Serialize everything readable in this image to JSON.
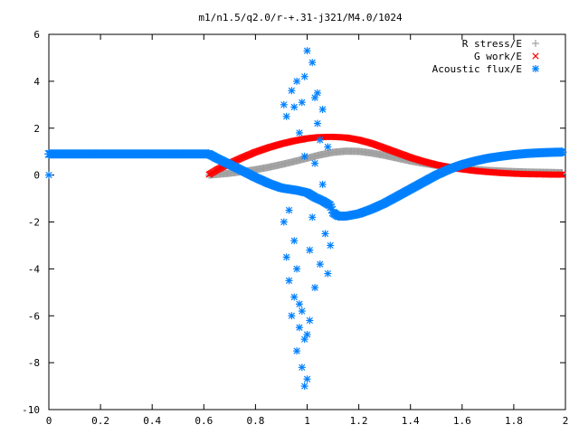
{
  "chart_data": {
    "type": "scatter",
    "title": "m1/n1.5/q2.0/r-+.31-j321/M4.0/1024",
    "xlabel": "",
    "ylabel": "",
    "xlim": [
      0,
      2
    ],
    "ylim": [
      -10,
      6
    ],
    "x_ticks": [
      0,
      0.2,
      0.4,
      0.6,
      0.8,
      1,
      1.2,
      1.4,
      1.6,
      1.8,
      2
    ],
    "x_tick_labels": [
      "0",
      "0.2",
      "0.4",
      "0.6",
      "0.8",
      "1",
      "1.2",
      "1.4",
      "1.6",
      "1.8",
      "2"
    ],
    "y_ticks": [
      -10,
      -8,
      -6,
      -4,
      -2,
      0,
      2,
      4,
      6
    ],
    "y_tick_labels": [
      "-10",
      "-8",
      "-6",
      "-4",
      "-2",
      "0",
      "2",
      "4",
      "6"
    ],
    "grid": false,
    "legend_position": "top-right",
    "series": [
      {
        "name": "R stress/E",
        "marker": "plus",
        "color": "#a0a0a0",
        "x": [
          0.62,
          0.65,
          0.7,
          0.75,
          0.8,
          0.85,
          0.9,
          0.95,
          1.0,
          1.05,
          1.1,
          1.15,
          1.2,
          1.25,
          1.3,
          1.35,
          1.4,
          1.45,
          1.5,
          1.55,
          1.6,
          1.65,
          1.7,
          1.75,
          1.8,
          1.85,
          1.9,
          1.95,
          1.99
        ],
        "y": [
          0.0,
          0.03,
          0.08,
          0.15,
          0.23,
          0.33,
          0.45,
          0.58,
          0.72,
          0.86,
          0.97,
          1.02,
          1.01,
          0.94,
          0.84,
          0.72,
          0.6,
          0.5,
          0.41,
          0.34,
          0.28,
          0.24,
          0.2,
          0.17,
          0.15,
          0.13,
          0.12,
          0.11,
          0.1
        ]
      },
      {
        "name": "G work/E",
        "marker": "cross",
        "color": "#ff0000",
        "x": [
          0.62,
          0.65,
          0.7,
          0.75,
          0.8,
          0.85,
          0.9,
          0.95,
          1.0,
          1.05,
          1.1,
          1.15,
          1.2,
          1.25,
          1.3,
          1.35,
          1.4,
          1.45,
          1.5,
          1.55,
          1.6,
          1.65,
          1.7,
          1.75,
          1.8,
          1.85,
          1.9,
          1.95,
          1.99
        ],
        "y": [
          0.02,
          0.22,
          0.5,
          0.75,
          0.98,
          1.17,
          1.33,
          1.46,
          1.56,
          1.62,
          1.63,
          1.6,
          1.5,
          1.35,
          1.15,
          0.95,
          0.75,
          0.58,
          0.44,
          0.33,
          0.25,
          0.18,
          0.13,
          0.09,
          0.06,
          0.04,
          0.03,
          0.02,
          0.02
        ]
      },
      {
        "name": "Acoustic flux/E",
        "marker": "star",
        "color": "#0080ff",
        "x": [
          0.62,
          0.65,
          0.7,
          0.75,
          0.8,
          0.85,
          0.9,
          0.93,
          0.96,
          1.0,
          1.03,
          1.06,
          1.09,
          1.1,
          1.12,
          1.15,
          1.2,
          1.25,
          1.3,
          1.35,
          1.4,
          1.45,
          1.5,
          1.55,
          1.6,
          1.65,
          1.7,
          1.75,
          1.8,
          1.85,
          1.9,
          1.95,
          1.99
        ],
        "y": [
          0.9,
          0.72,
          0.45,
          0.18,
          -0.1,
          -0.35,
          -0.55,
          -0.6,
          -0.65,
          -0.75,
          -0.95,
          -1.1,
          -1.3,
          -1.6,
          -1.75,
          -1.75,
          -1.65,
          -1.45,
          -1.2,
          -0.9,
          -0.6,
          -0.3,
          0.0,
          0.25,
          0.45,
          0.6,
          0.72,
          0.8,
          0.87,
          0.92,
          0.95,
          0.97,
          0.98
        ],
        "scatter_x": [
          0.91,
          0.92,
          0.93,
          0.94,
          0.95,
          0.96,
          0.97,
          0.98,
          0.99,
          1.0,
          1.01,
          1.02,
          1.03,
          1.04,
          1.05,
          1.06,
          1.07,
          1.08,
          1.09,
          0.92,
          0.94,
          0.96,
          0.98,
          1.0,
          1.02,
          1.04,
          1.06,
          1.08,
          0.93,
          0.95,
          0.97,
          0.99,
          1.01,
          1.03,
          1.05,
          0.91,
          0.95,
          0.99,
          1.03,
          0.96,
          0.98,
          1.0,
          0.97,
          0.99
        ],
        "scatter_y": [
          -2.0,
          -3.5,
          -4.5,
          -6.0,
          -5.2,
          -7.5,
          -6.5,
          -8.2,
          -9.0,
          -6.8,
          -3.2,
          -1.8,
          0.5,
          2.2,
          1.5,
          -0.4,
          -2.5,
          -4.2,
          -3.0,
          2.5,
          3.6,
          4.0,
          3.1,
          5.3,
          4.8,
          3.5,
          2.8,
          1.2,
          -1.5,
          -2.8,
          -5.5,
          -7.0,
          -6.2,
          -4.8,
          -3.8,
          3.0,
          2.9,
          4.2,
          3.3,
          -4.0,
          -5.8,
          -8.7,
          1.8,
          0.8
        ]
      }
    ]
  }
}
